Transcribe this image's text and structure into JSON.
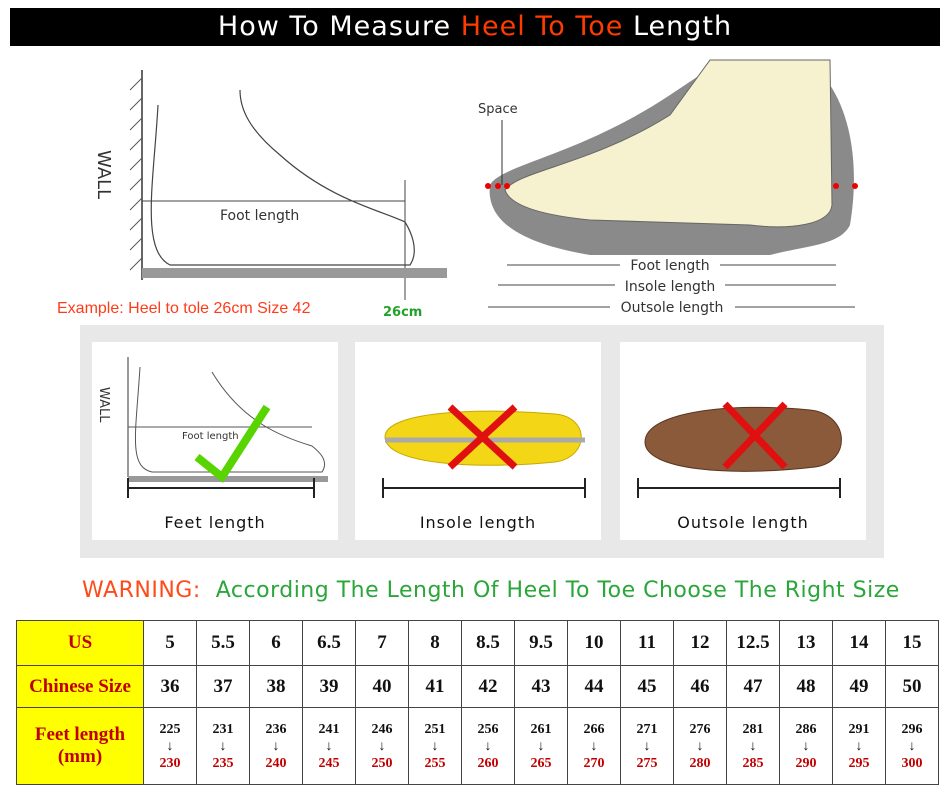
{
  "title": {
    "part1": "How To Measure ",
    "highlight": "Heel To Toe",
    "part2": " Length"
  },
  "diagram_left": {
    "wall": "WALL",
    "foot_length": "Foot length",
    "example": "Example: Heel to tole 26cm Size 42",
    "mark": "26cm"
  },
  "diagram_right": {
    "space": "Space",
    "foot_length": "Foot length",
    "insole_length": "Insole length",
    "outsole_length": "Outsole length"
  },
  "cards": [
    {
      "label": "Feet length",
      "wall": "WALL",
      "foot_length": "Foot length",
      "status": "correct"
    },
    {
      "label": "Insole length",
      "status": "wrong"
    },
    {
      "label": "Outsole length",
      "status": "wrong"
    }
  ],
  "warning": {
    "prefix": "WARNING:",
    "message": "According The Length Of Heel To Toe Choose The Right Size"
  },
  "colors": {
    "title_highlight": "#ff3b00",
    "header_bg": "#ffff00",
    "header_text": "#c00000",
    "warning": "#ff4a1a",
    "message": "#2aa63a"
  },
  "size_table": {
    "rows": [
      {
        "header": "US",
        "values": [
          "5",
          "5.5",
          "6",
          "6.5",
          "7",
          "8",
          "8.5",
          "9.5",
          "10",
          "11",
          "12",
          "12.5",
          "13",
          "14",
          "15"
        ]
      },
      {
        "header": "Chinese Size",
        "values": [
          "36",
          "37",
          "38",
          "39",
          "40",
          "41",
          "42",
          "43",
          "44",
          "45",
          "46",
          "47",
          "48",
          "49",
          "50"
        ]
      },
      {
        "header": "Feet length",
        "header2": "(mm)",
        "from": [
          "225",
          "231",
          "236",
          "241",
          "246",
          "251",
          "256",
          "261",
          "266",
          "271",
          "276",
          "281",
          "286",
          "291",
          "296"
        ],
        "to": [
          "230",
          "235",
          "240",
          "245",
          "250",
          "255",
          "260",
          "265",
          "270",
          "275",
          "280",
          "285",
          "290",
          "295",
          "300"
        ]
      }
    ]
  }
}
